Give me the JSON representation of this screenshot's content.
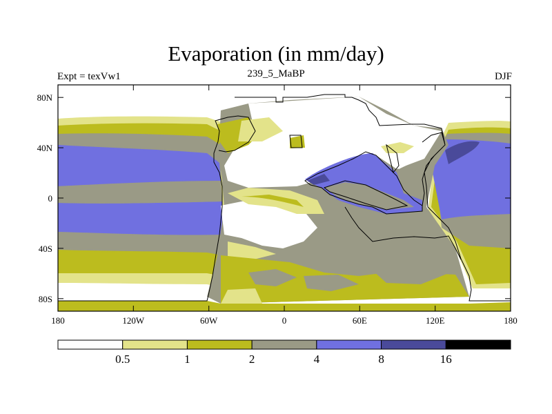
{
  "title": "Evaporation (in mm/day)",
  "left_subtitle": "Expt = texVw1",
  "center_subtitle": "239_5_MaBP",
  "right_subtitle": "DJF",
  "map": {
    "lon_ticks": [
      "180",
      "120W",
      "60W",
      "0",
      "60E",
      "120E",
      "180"
    ],
    "lat_ticks": [
      "80N",
      "40N",
      "0",
      "40S",
      "80S"
    ]
  },
  "colorbar": {
    "labels": [
      "0.5",
      "1",
      "2",
      "4",
      "8",
      "16"
    ],
    "colors": [
      "#ffffff",
      "#e3e38a",
      "#bcbc1e",
      "#9a9a86",
      "#7070e0",
      "#4a4a9a",
      "#000000"
    ]
  }
}
